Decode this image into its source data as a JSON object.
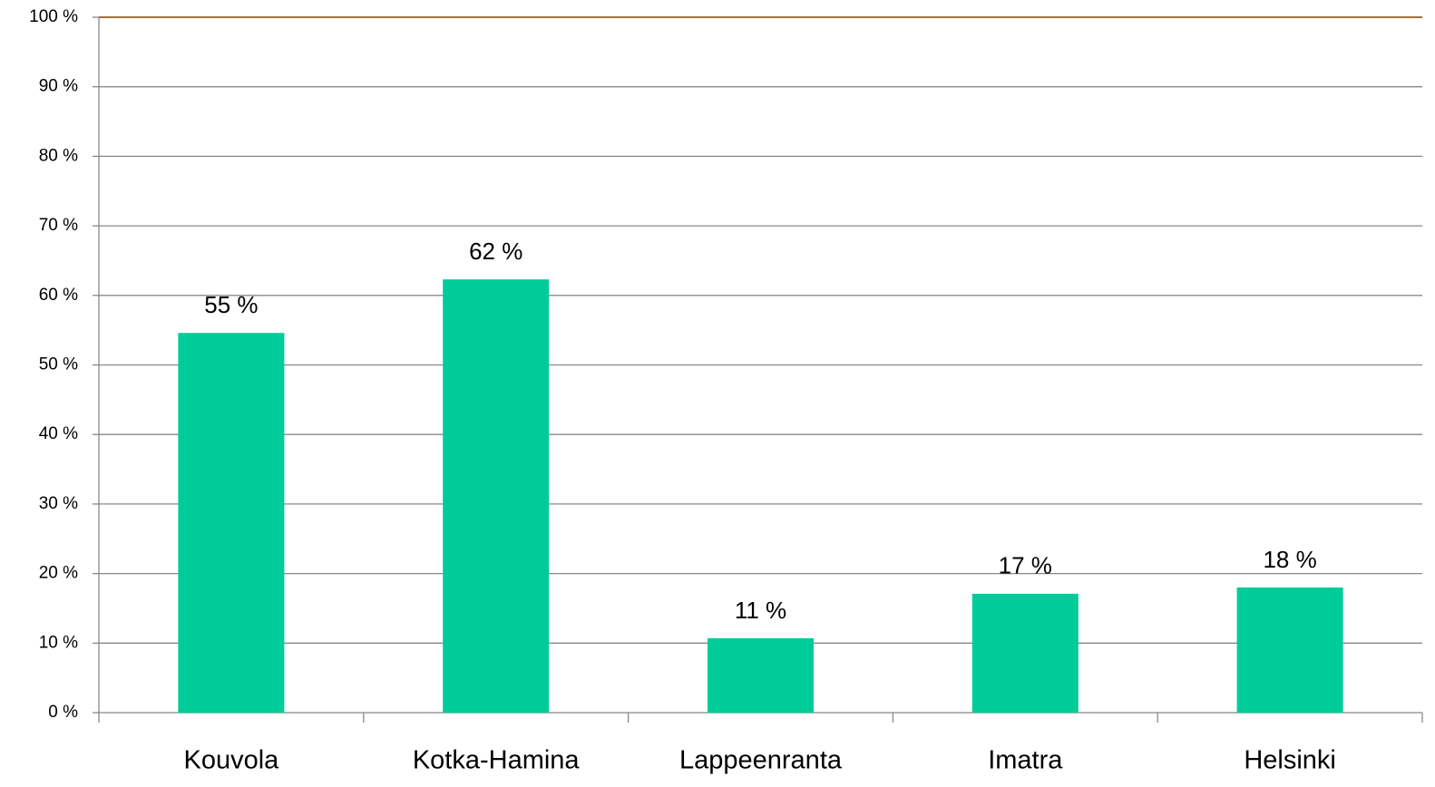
{
  "chart_data": {
    "type": "bar",
    "categories": [
      "Kouvola",
      "Kotka-Hamina",
      "Lappeenranta",
      "Imatra",
      "Helsinki"
    ],
    "values": [
      54.6,
      62.3,
      10.7,
      17.1,
      18.0
    ],
    "value_labels": [
      "55 %",
      "62 %",
      "11 %",
      "17 %",
      "18 %"
    ],
    "color": "#00cc99",
    "ylim": [
      0,
      100
    ],
    "yticks": [
      {
        "value": 0,
        "label": "0 %"
      },
      {
        "value": 10,
        "label": "10 %"
      },
      {
        "value": 20,
        "label": "20 %"
      },
      {
        "value": 30,
        "label": "30 %"
      },
      {
        "value": 40,
        "label": "40 %"
      },
      {
        "value": 50,
        "label": "50 %"
      },
      {
        "value": 60,
        "label": "60 %"
      },
      {
        "value": 70,
        "label": "70 %"
      },
      {
        "value": 80,
        "label": "80 %"
      },
      {
        "value": 90,
        "label": "90 %"
      },
      {
        "value": 100,
        "label": "100 %"
      }
    ],
    "grid": true
  }
}
